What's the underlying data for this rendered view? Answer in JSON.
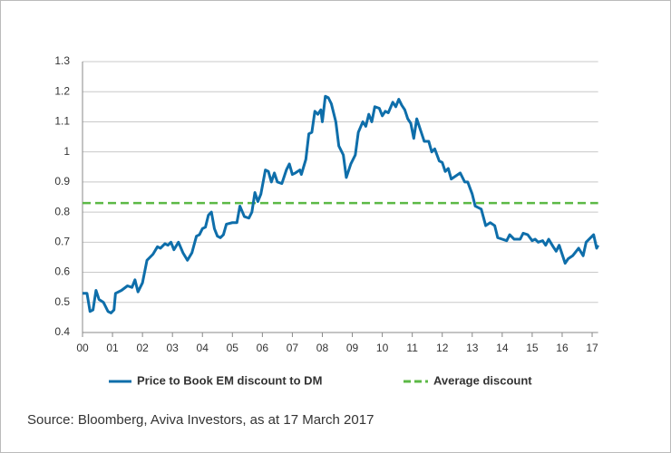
{
  "chart_data": {
    "type": "line",
    "x": [
      0,
      0.15,
      0.25,
      0.35,
      0.45,
      0.55,
      0.7,
      0.85,
      0.95,
      1.05,
      1.1,
      1.3,
      1.5,
      1.65,
      1.75,
      1.85,
      2.0,
      2.15,
      2.35,
      2.5,
      2.6,
      2.75,
      2.85,
      2.95,
      3.05,
      3.2,
      3.35,
      3.5,
      3.65,
      3.8,
      3.9,
      4.0,
      4.1,
      4.2,
      4.3,
      4.4,
      4.5,
      4.6,
      4.7,
      4.8,
      5.0,
      5.15,
      5.25,
      5.4,
      5.55,
      5.65,
      5.75,
      5.85,
      5.95,
      6.1,
      6.2,
      6.3,
      6.4,
      6.5,
      6.65,
      6.8,
      6.9,
      7.0,
      7.1,
      7.25,
      7.3,
      7.45,
      7.55,
      7.65,
      7.75,
      7.85,
      7.95,
      8.0,
      8.1,
      8.2,
      8.3,
      8.45,
      8.55,
      8.7,
      8.8,
      8.95,
      9.1,
      9.2,
      9.35,
      9.45,
      9.55,
      9.65,
      9.75,
      9.9,
      10.0,
      10.1,
      10.2,
      10.35,
      10.45,
      10.55,
      10.65,
      10.75,
      10.85,
      10.95,
      11.05,
      11.15,
      11.3,
      11.4,
      11.55,
      11.65,
      11.75,
      11.9,
      12.0,
      12.1,
      12.2,
      12.3,
      12.45,
      12.6,
      12.75,
      12.85,
      13.0,
      13.1,
      13.3,
      13.45,
      13.6,
      13.75,
      13.85,
      14.0,
      14.15,
      14.25,
      14.4,
      14.6,
      14.7,
      14.85,
      15.0,
      15.1,
      15.2,
      15.35,
      15.45,
      15.55,
      15.7,
      15.8,
      15.9,
      16.0,
      16.1,
      16.2,
      16.35,
      16.55,
      16.7,
      16.8,
      16.95,
      17.05,
      17.15,
      17.2
    ],
    "series": [
      {
        "name": "Price to Book EM discount to DM",
        "color": "#0e6eaa",
        "values": [
          0.53,
          0.53,
          0.47,
          0.475,
          0.54,
          0.51,
          0.5,
          0.47,
          0.465,
          0.475,
          0.53,
          0.54,
          0.555,
          0.55,
          0.575,
          0.535,
          0.565,
          0.64,
          0.66,
          0.685,
          0.68,
          0.695,
          0.69,
          0.7,
          0.675,
          0.7,
          0.665,
          0.64,
          0.665,
          0.72,
          0.725,
          0.745,
          0.75,
          0.79,
          0.8,
          0.745,
          0.72,
          0.715,
          0.725,
          0.76,
          0.765,
          0.765,
          0.82,
          0.785,
          0.78,
          0.8,
          0.865,
          0.835,
          0.86,
          0.94,
          0.935,
          0.9,
          0.93,
          0.9,
          0.895,
          0.94,
          0.96,
          0.925,
          0.93,
          0.94,
          0.925,
          0.975,
          1.06,
          1.065,
          1.135,
          1.125,
          1.14,
          1.1,
          1.185,
          1.18,
          1.16,
          1.1,
          1.02,
          0.99,
          0.915,
          0.96,
          0.99,
          1.065,
          1.1,
          1.085,
          1.125,
          1.1,
          1.15,
          1.145,
          1.12,
          1.135,
          1.13,
          1.165,
          1.15,
          1.175,
          1.155,
          1.14,
          1.11,
          1.095,
          1.045,
          1.11,
          1.065,
          1.035,
          1.035,
          1.0,
          1.01,
          0.97,
          0.965,
          0.935,
          0.945,
          0.91,
          0.92,
          0.93,
          0.9,
          0.9,
          0.86,
          0.82,
          0.81,
          0.755,
          0.765,
          0.755,
          0.715,
          0.71,
          0.705,
          0.725,
          0.71,
          0.71,
          0.73,
          0.725,
          0.705,
          0.71,
          0.7,
          0.705,
          0.69,
          0.71,
          0.685,
          0.67,
          0.69,
          0.66,
          0.63,
          0.645,
          0.655,
          0.68,
          0.655,
          0.7,
          0.715,
          0.725,
          0.68,
          0.69
        ]
      }
    ],
    "hlines": [
      {
        "name": "Average discount",
        "value": 0.83,
        "color": "#5cb946"
      }
    ],
    "xlim": [
      0,
      17.2
    ],
    "xticks": [
      {
        "value": 0,
        "label": "00"
      },
      {
        "value": 1,
        "label": "01"
      },
      {
        "value": 2,
        "label": "02"
      },
      {
        "value": 3,
        "label": "03"
      },
      {
        "value": 4,
        "label": "04"
      },
      {
        "value": 5,
        "label": "05"
      },
      {
        "value": 6,
        "label": "06"
      },
      {
        "value": 7,
        "label": "07"
      },
      {
        "value": 8,
        "label": "08"
      },
      {
        "value": 9,
        "label": "09"
      },
      {
        "value": 10,
        "label": "10"
      },
      {
        "value": 11,
        "label": "11"
      },
      {
        "value": 12,
        "label": "12"
      },
      {
        "value": 13,
        "label": "13"
      },
      {
        "value": 14,
        "label": "14"
      },
      {
        "value": 15,
        "label": "15"
      },
      {
        "value": 16,
        "label": "16"
      },
      {
        "value": 17,
        "label": "17"
      }
    ],
    "ylim": [
      0.4,
      1.3
    ],
    "yticks": [
      0.4,
      0.5,
      0.6,
      0.7,
      0.8,
      0.9,
      1,
      1.1,
      1.2,
      1.3
    ],
    "grid": true,
    "source": "Source: Bloomberg, Aviva Investors, as at 17 March 2017"
  }
}
